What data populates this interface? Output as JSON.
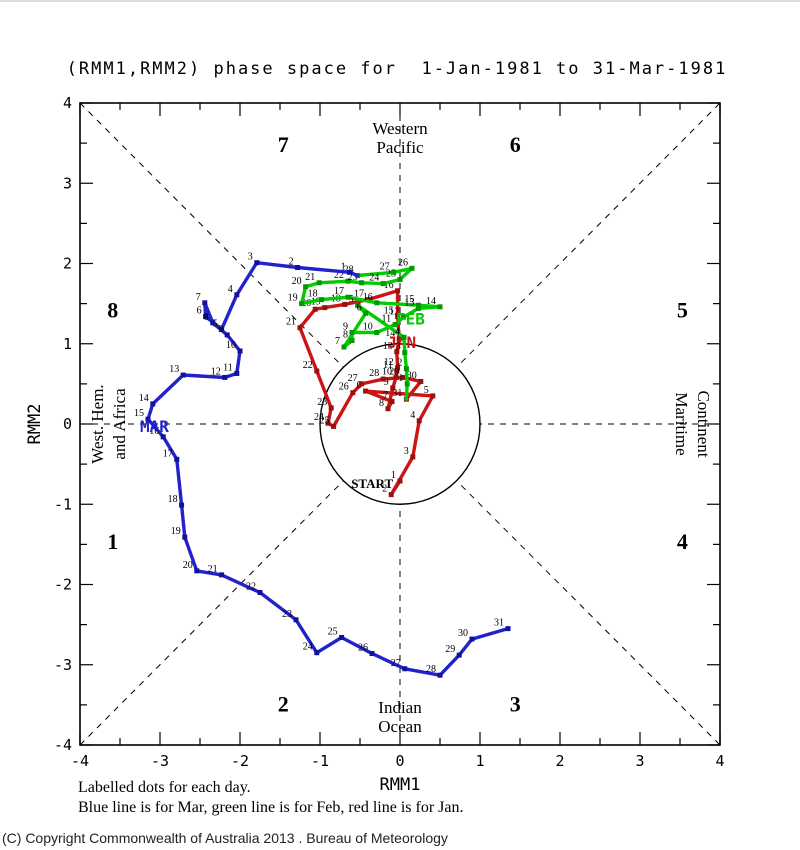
{
  "title": "(RMM1,RMM2) phase space for  1-Jan-1981 to 31-Mar-1981",
  "caption": {
    "line1": "Labelled dots for each day.",
    "line2": "Blue line is for Mar, green line is for Feb, red line is for Jan."
  },
  "copyright": "(C) Copyright Commonwealth of Australia 2013 . Bureau of Meteorology",
  "axes": {
    "xlabel": "RMM1",
    "ylabel": "RMM2",
    "xlim": [
      -4,
      4
    ],
    "ylim": [
      -4,
      4
    ],
    "major_ticks": [
      -4,
      -3,
      -2,
      -1,
      0,
      1,
      2,
      3,
      4
    ],
    "tick_labels": [
      "-4",
      "-3",
      "-2",
      "-1",
      "0",
      "1",
      "2",
      "3",
      "4"
    ],
    "minor_ticks": [
      -3.5,
      -2.5,
      -1.5,
      -0.5,
      0.5,
      1.5,
      2.5,
      3.5
    ]
  },
  "regions": {
    "top": [
      "Western",
      "Pacific"
    ],
    "bottom": [
      "Indian",
      "Ocean"
    ],
    "left": [
      "West. Hem.",
      "and Africa"
    ],
    "right": [
      "Maritime",
      "Continent"
    ]
  },
  "chart_data": {
    "type": "line",
    "title": "(RMM1,RMM2) phase space for 1-Jan-1981 to 31-Mar-1981",
    "xlabel": "RMM1",
    "ylabel": "RMM2",
    "xlim": [
      -4,
      4
    ],
    "ylim": [
      -4,
      4
    ],
    "unit_circle_radius": 1,
    "grid": "dashed phase-octant lines, labelled dots for each day",
    "phases": [
      {
        "label": "1",
        "x": -3.59,
        "y": -1.56
      },
      {
        "label": "2",
        "x": -1.46,
        "y": -3.58
      },
      {
        "label": "3",
        "x": 1.44,
        "y": -3.58
      },
      {
        "label": "4",
        "x": 3.53,
        "y": -1.56
      },
      {
        "label": "5",
        "x": 3.53,
        "y": 1.33
      },
      {
        "label": "6",
        "x": 1.44,
        "y": 3.39
      },
      {
        "label": "7",
        "x": -1.46,
        "y": 3.39
      },
      {
        "label": "8",
        "x": -3.59,
        "y": 1.33
      }
    ],
    "start_label": {
      "text": "START",
      "x": -0.61,
      "y": -0.8
    },
    "series": [
      {
        "name": "Jan",
        "color": "#cc1414",
        "dot_color": "#991010",
        "month_label": "JAN",
        "label_pos": [
          -0.16,
          0.95
        ],
        "points": [
          [
            0.0,
            -0.71
          ],
          [
            -0.11,
            -0.88
          ],
          [
            0.16,
            -0.41
          ],
          [
            0.24,
            0.04
          ],
          [
            0.41,
            0.35
          ],
          [
            -0.43,
            0.41
          ],
          [
            -0.1,
            0.28
          ],
          [
            -0.15,
            0.19
          ],
          [
            -0.09,
            0.45
          ],
          [
            -0.05,
            0.58
          ],
          [
            -0.04,
            0.66
          ],
          [
            -0.03,
            0.7
          ],
          [
            -0.04,
            0.9
          ],
          [
            -0.01,
            1.06
          ],
          [
            -0.03,
            1.34
          ],
          [
            -0.03,
            1.66
          ],
          [
            -0.4,
            1.55
          ],
          [
            -0.69,
            1.49
          ],
          [
            -0.94,
            1.45
          ],
          [
            -1.06,
            1.43
          ],
          [
            -1.25,
            1.2
          ],
          [
            -1.04,
            0.66
          ],
          [
            -0.86,
            0.2
          ],
          [
            -0.9,
            0.01
          ],
          [
            -0.83,
            -0.03
          ],
          [
            -0.59,
            0.39
          ],
          [
            -0.48,
            0.5
          ],
          [
            -0.21,
            0.56
          ],
          [
            0.04,
            0.58
          ],
          [
            0.26,
            0.53
          ],
          [
            0.08,
            0.31
          ]
        ]
      },
      {
        "name": "Feb",
        "color": "#00cc00",
        "dot_color": "#009900",
        "month_label": "FEB",
        "label_pos": [
          -0.05,
          1.24
        ],
        "lead_in": [
          0.08,
          0.31
        ],
        "points": [
          [
            0.09,
            0.5
          ],
          [
            0.08,
            0.69
          ],
          [
            0.06,
            0.89
          ],
          [
            0.05,
            1.08
          ],
          [
            -0.53,
            1.48
          ],
          [
            -0.43,
            1.38
          ],
          [
            -0.7,
            0.96
          ],
          [
            -0.6,
            1.04
          ],
          [
            -0.6,
            1.14
          ],
          [
            -0.29,
            1.14
          ],
          [
            -0.06,
            1.24
          ],
          [
            0.04,
            1.33
          ],
          [
            0.23,
            1.44
          ],
          [
            0.5,
            1.46
          ],
          [
            0.23,
            1.48
          ],
          [
            -0.29,
            1.51
          ],
          [
            -0.65,
            1.58
          ],
          [
            -0.98,
            1.55
          ],
          [
            -1.23,
            1.5
          ],
          [
            -1.18,
            1.71
          ],
          [
            -1.01,
            1.76
          ],
          [
            -0.65,
            1.78
          ],
          [
            -0.48,
            1.76
          ],
          [
            -0.21,
            1.75
          ],
          [
            0.0,
            1.8
          ],
          [
            0.15,
            1.94
          ],
          [
            -0.08,
            1.89
          ],
          [
            -0.53,
            1.85
          ]
        ]
      },
      {
        "name": "Mar",
        "color": "#2222cc",
        "dot_color": "#111199",
        "month_label": "MAR",
        "label_pos": [
          -3.25,
          -0.1
        ],
        "lead_in": [
          -0.53,
          1.85
        ],
        "points": [
          [
            -0.63,
            1.89
          ],
          [
            -1.28,
            1.95
          ],
          [
            -1.79,
            2.01
          ],
          [
            -2.04,
            1.61
          ],
          [
            -2.23,
            1.18
          ],
          [
            -2.43,
            1.34
          ],
          [
            -2.44,
            1.51
          ],
          [
            -2.34,
            1.26
          ],
          [
            -2.16,
            1.11
          ],
          [
            -2.0,
            0.91
          ],
          [
            -2.04,
            0.63
          ],
          [
            -2.19,
            0.58
          ],
          [
            -2.71,
            0.61
          ],
          [
            -3.09,
            0.25
          ],
          [
            -3.15,
            0.06
          ],
          [
            -2.96,
            -0.16
          ],
          [
            -2.79,
            -0.44
          ],
          [
            -2.73,
            -1.01
          ],
          [
            -2.69,
            -1.41
          ],
          [
            -2.54,
            -1.83
          ],
          [
            -2.23,
            -1.88
          ],
          [
            -1.75,
            -2.1
          ],
          [
            -1.3,
            -2.44
          ],
          [
            -1.04,
            -2.85
          ],
          [
            -0.73,
            -2.66
          ],
          [
            -0.35,
            -2.86
          ],
          [
            0.06,
            -3.05
          ],
          [
            0.5,
            -3.13
          ],
          [
            0.74,
            -2.88
          ],
          [
            0.9,
            -2.68
          ],
          [
            1.35,
            -2.55
          ]
        ]
      }
    ]
  }
}
